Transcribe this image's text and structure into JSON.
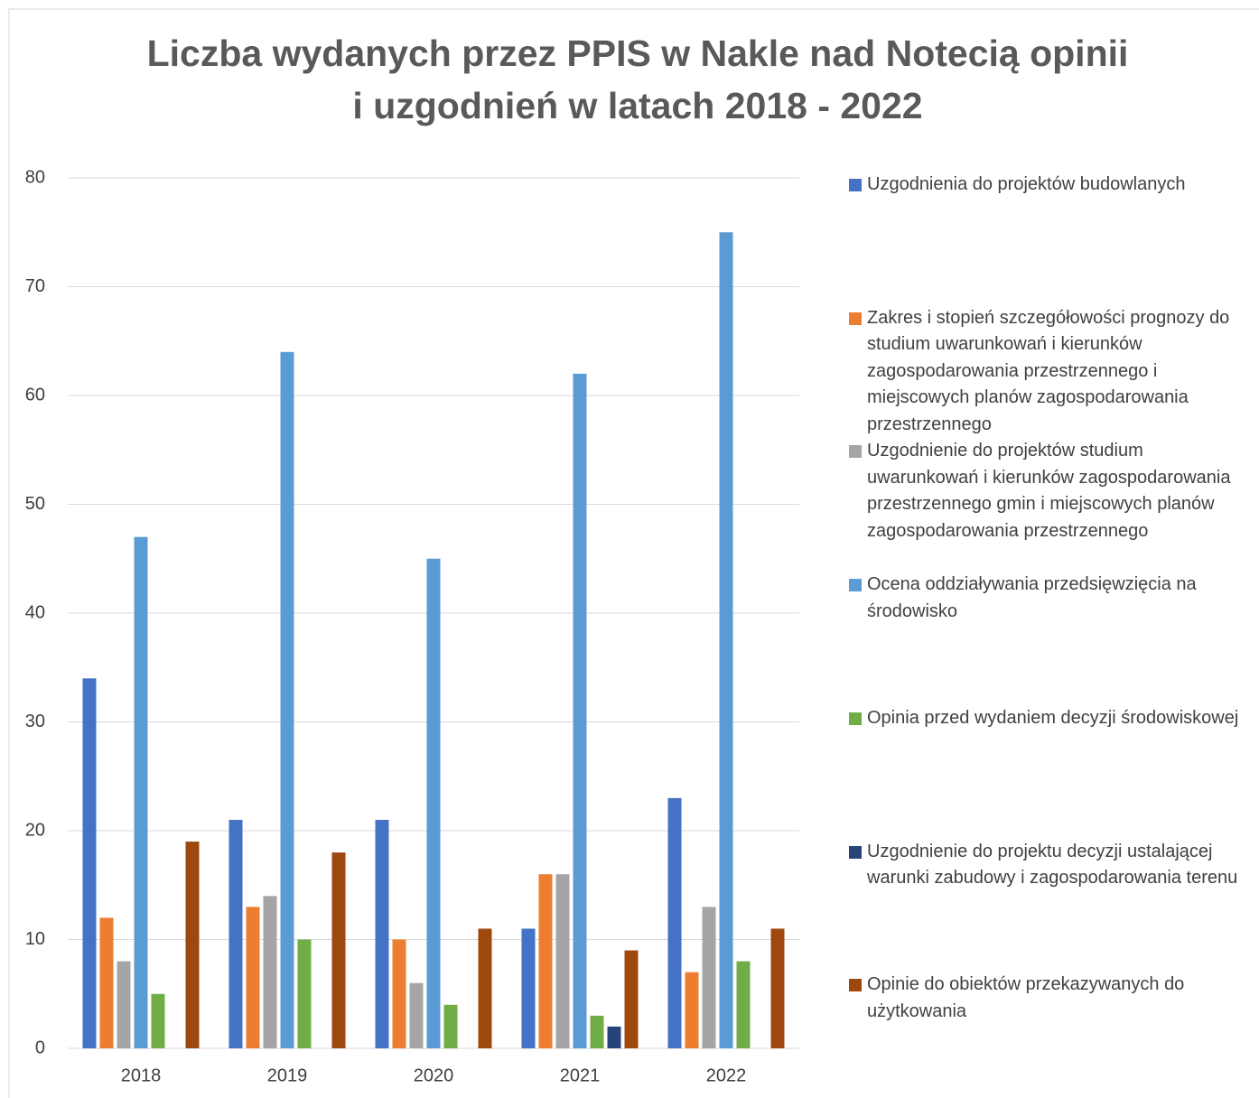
{
  "chart_data": {
    "type": "bar",
    "title": [
      "Liczba wydanych przez PPIS w Nakle nad Notecią opinii",
      "i uzgodnień w latach 2018 - 2022"
    ],
    "categories": [
      "2018",
      "2019",
      "2020",
      "2021",
      "2022"
    ],
    "series": [
      {
        "name": "Uzgodnienia do projektów budowlanych",
        "color": "#4472c4",
        "values": [
          34,
          21,
          21,
          11,
          23
        ]
      },
      {
        "name": "Zakres i stopień szczegółowości prognozy do studium uwarunkowań i kierunków zagospodarowania przestrzennego i miejscowych planów zagospodarowania przestrzennego",
        "color": "#ed7d31",
        "values": [
          12,
          13,
          10,
          16,
          7
        ]
      },
      {
        "name": "Uzgodnienie do projektów studium uwarunkowań i kierunków zagospodarowania przestrzennego gmin i miejscowych planów zagospodarowania przestrzennego",
        "color": "#a5a5a5",
        "values": [
          8,
          14,
          6,
          16,
          13
        ]
      },
      {
        "name": "Ocena oddziaływania przedsięwzięcia na środowisko",
        "color": "#5b9bd5",
        "values": [
          47,
          64,
          45,
          62,
          75
        ]
      },
      {
        "name": "Opinia przed wydaniem decyzji środowiskowej",
        "color": "#70ad47",
        "values": [
          5,
          10,
          4,
          3,
          8
        ]
      },
      {
        "name": "Uzgodnienie do projektu decyzji ustalającej warunki zabudowy i zagospodarowania terenu",
        "color": "#264478",
        "values": [
          0,
          0,
          0,
          2,
          0
        ]
      },
      {
        "name": "Opinie do obiektów przekazywanych do użytkowania",
        "color": "#9e480e",
        "values": [
          19,
          18,
          11,
          9,
          11
        ]
      }
    ],
    "ylim": [
      0,
      80
    ],
    "yticks": [
      0,
      10,
      20,
      30,
      40,
      50,
      60,
      70,
      80
    ],
    "grid": true,
    "legend": "right"
  }
}
